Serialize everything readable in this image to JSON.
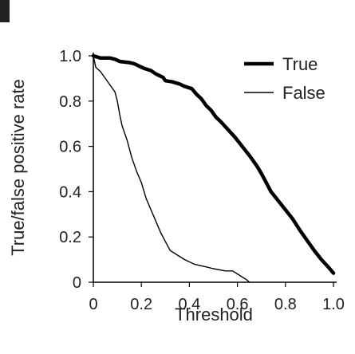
{
  "chart_data": {
    "type": "line",
    "xlabel": "Threshold",
    "ylabel": "True/false positive rate",
    "xlim": [
      0,
      1
    ],
    "ylim": [
      0,
      1
    ],
    "x_ticks": [
      "0",
      "0.2",
      "0.4",
      "0.6",
      "0.8",
      "1.0"
    ],
    "y_ticks": [
      "0",
      "0.2",
      "0.4",
      "0.6",
      "0.8",
      "1.0"
    ],
    "grid": false,
    "legend_position": "top-right",
    "series": [
      {
        "name": "True",
        "color": "#000000",
        "style": "thick",
        "points": [
          [
            0.0,
            1.0
          ],
          [
            0.03,
            0.99
          ],
          [
            0.07,
            0.99
          ],
          [
            0.09,
            0.985
          ],
          [
            0.11,
            0.975
          ],
          [
            0.15,
            0.97
          ],
          [
            0.17,
            0.965
          ],
          [
            0.19,
            0.955
          ],
          [
            0.21,
            0.945
          ],
          [
            0.24,
            0.935
          ],
          [
            0.26,
            0.92
          ],
          [
            0.29,
            0.905
          ],
          [
            0.3,
            0.89
          ],
          [
            0.33,
            0.885
          ],
          [
            0.36,
            0.875
          ],
          [
            0.38,
            0.865
          ],
          [
            0.41,
            0.855
          ],
          [
            0.43,
            0.83
          ],
          [
            0.45,
            0.81
          ],
          [
            0.47,
            0.78
          ],
          [
            0.49,
            0.76
          ],
          [
            0.51,
            0.73
          ],
          [
            0.53,
            0.71
          ],
          [
            0.56,
            0.675
          ],
          [
            0.59,
            0.64
          ],
          [
            0.62,
            0.6
          ],
          [
            0.65,
            0.56
          ],
          [
            0.68,
            0.515
          ],
          [
            0.7,
            0.48
          ],
          [
            0.72,
            0.44
          ],
          [
            0.74,
            0.4
          ],
          [
            0.77,
            0.36
          ],
          [
            0.8,
            0.32
          ],
          [
            0.83,
            0.28
          ],
          [
            0.86,
            0.23
          ],
          [
            0.89,
            0.185
          ],
          [
            0.92,
            0.14
          ],
          [
            0.95,
            0.1
          ],
          [
            0.98,
            0.065
          ],
          [
            1.0,
            0.04
          ]
        ]
      },
      {
        "name": "False",
        "color": "#000000",
        "style": "thin",
        "points": [
          [
            0.0,
            1.0
          ],
          [
            0.01,
            0.95
          ],
          [
            0.03,
            0.93
          ],
          [
            0.05,
            0.9
          ],
          [
            0.07,
            0.87
          ],
          [
            0.09,
            0.84
          ],
          [
            0.1,
            0.8
          ],
          [
            0.11,
            0.74
          ],
          [
            0.12,
            0.69
          ],
          [
            0.14,
            0.63
          ],
          [
            0.16,
            0.55
          ],
          [
            0.18,
            0.49
          ],
          [
            0.2,
            0.44
          ],
          [
            0.22,
            0.37
          ],
          [
            0.24,
            0.32
          ],
          [
            0.26,
            0.27
          ],
          [
            0.28,
            0.22
          ],
          [
            0.3,
            0.18
          ],
          [
            0.32,
            0.14
          ],
          [
            0.35,
            0.12
          ],
          [
            0.38,
            0.1
          ],
          [
            0.42,
            0.08
          ],
          [
            0.46,
            0.07
          ],
          [
            0.5,
            0.06
          ],
          [
            0.55,
            0.05
          ],
          [
            0.58,
            0.05
          ],
          [
            0.61,
            0.03
          ],
          [
            0.64,
            0.01
          ],
          [
            0.65,
            0.0
          ]
        ]
      }
    ]
  }
}
